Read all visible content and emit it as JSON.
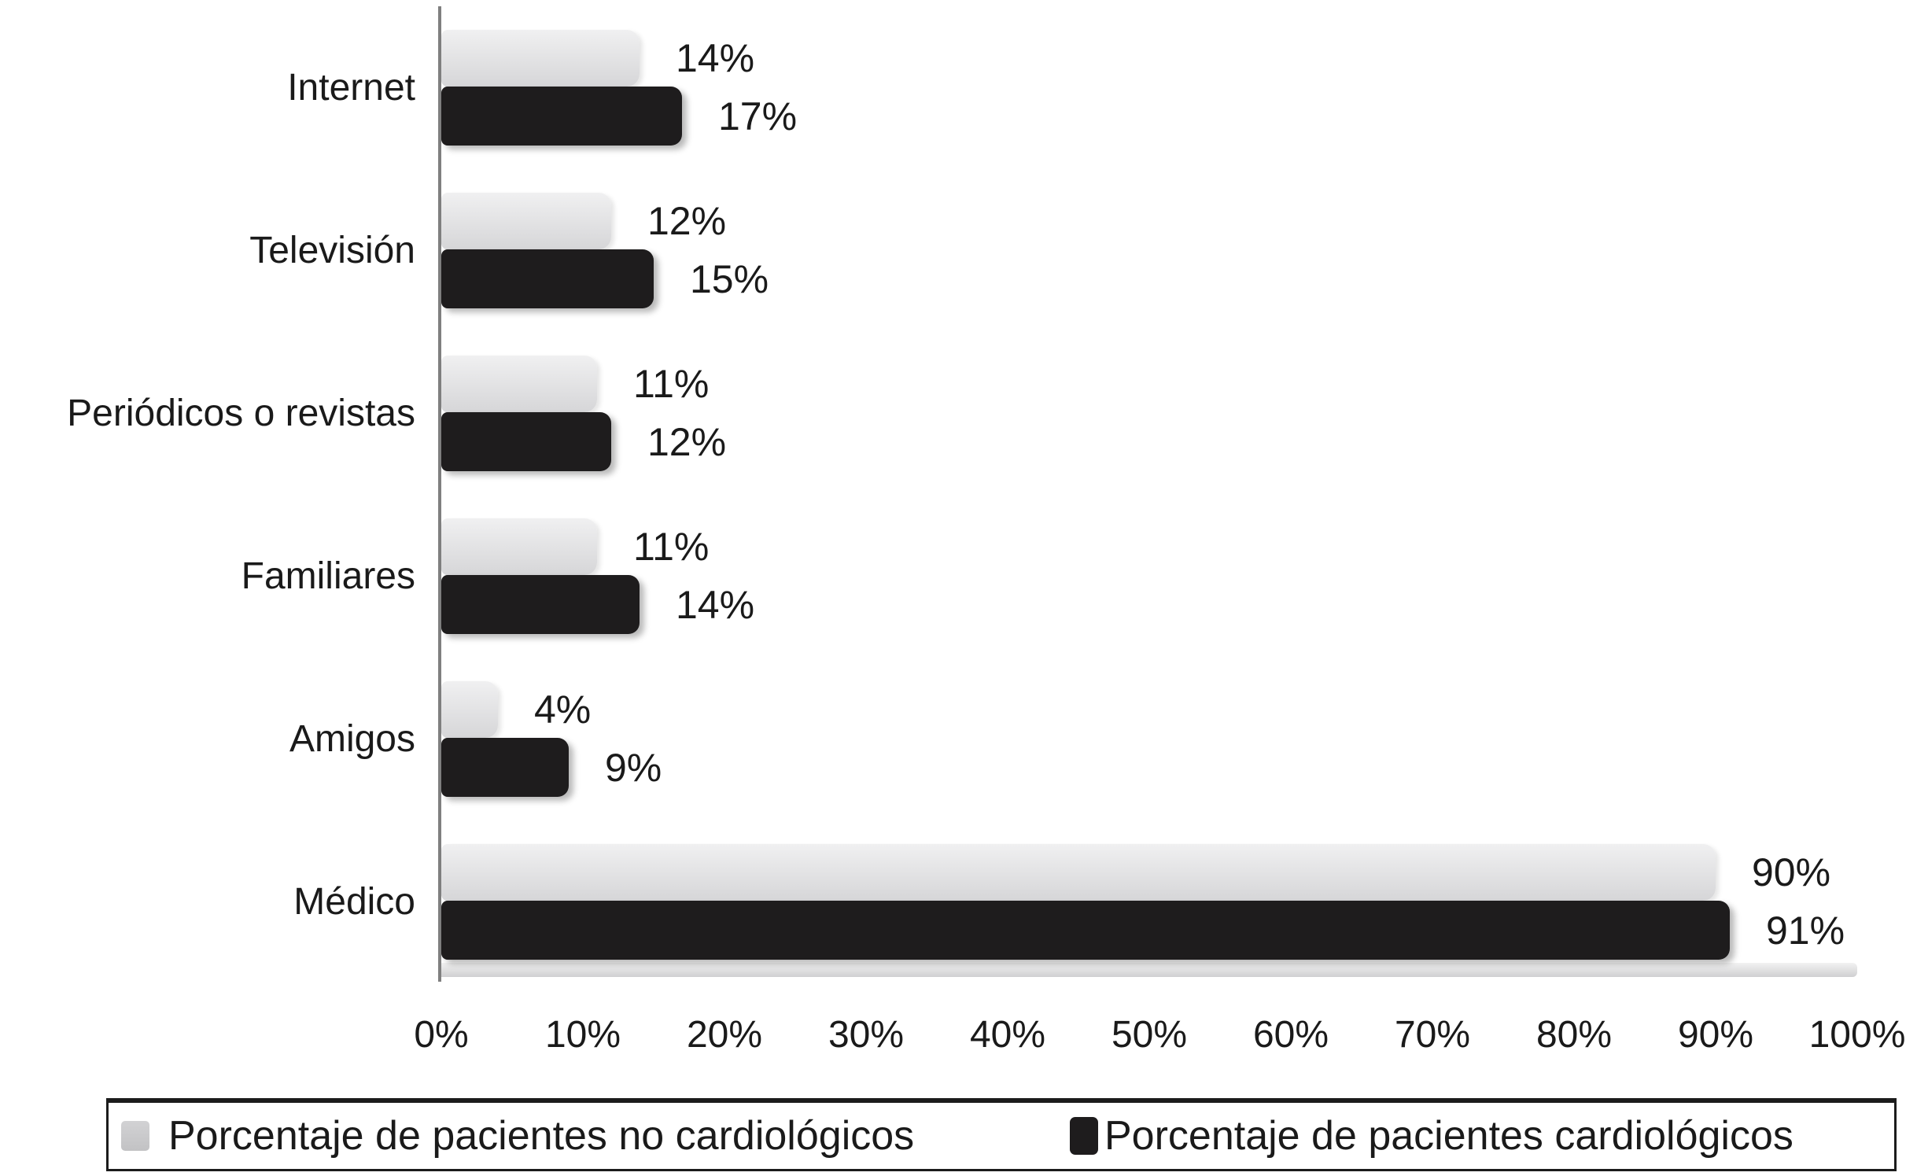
{
  "chart_data": {
    "type": "bar",
    "orientation": "horizontal",
    "title": "",
    "xlabel": "",
    "ylabel": "",
    "xlim": [
      0,
      100
    ],
    "grid": false,
    "legend_position": "bottom",
    "categories": [
      "Internet",
      "Televisión",
      "Periódicos o revistas",
      "Familiares",
      "Amigos",
      "Médico"
    ],
    "series": [
      {
        "name": "Porcentaje de pacientes no cardiológicos",
        "color": "#d9d9db",
        "values": [
          14,
          12,
          11,
          11,
          4,
          90
        ]
      },
      {
        "name": "Porcentaje de pacientes cardiológicos",
        "color": "#1e1c1d",
        "values": [
          17,
          15,
          12,
          14,
          9,
          91
        ]
      }
    ],
    "x_ticks": [
      "0%",
      "10%",
      "20%",
      "30%",
      "40%",
      "50%",
      "60%",
      "70%",
      "80%",
      "90%",
      "100%"
    ],
    "rows": [
      {
        "category": "Internet",
        "no_cardio_label": "14%",
        "cardio_label": "17%"
      },
      {
        "category": "Televisión",
        "no_cardio_label": "12%",
        "cardio_label": "15%"
      },
      {
        "category": "Periódicos o revistas",
        "no_cardio_label": "11%",
        "cardio_label": "12%"
      },
      {
        "category": "Familiares",
        "no_cardio_label": "11%",
        "cardio_label": "14%"
      },
      {
        "category": "Amigos",
        "no_cardio_label": "4%",
        "cardio_label": "9%"
      },
      {
        "category": "Médico",
        "no_cardio_label": "90%",
        "cardio_label": "91%"
      }
    ]
  },
  "colors": {
    "background": "#ffffff",
    "no_cardio_bar": "#d9d9db",
    "cardio_bar": "#1e1c1d",
    "axis_line": "#7f7f7f",
    "baseline": "#d4d4d6",
    "text": "#1a1a1a",
    "legend_border": "#1c1c1c"
  }
}
